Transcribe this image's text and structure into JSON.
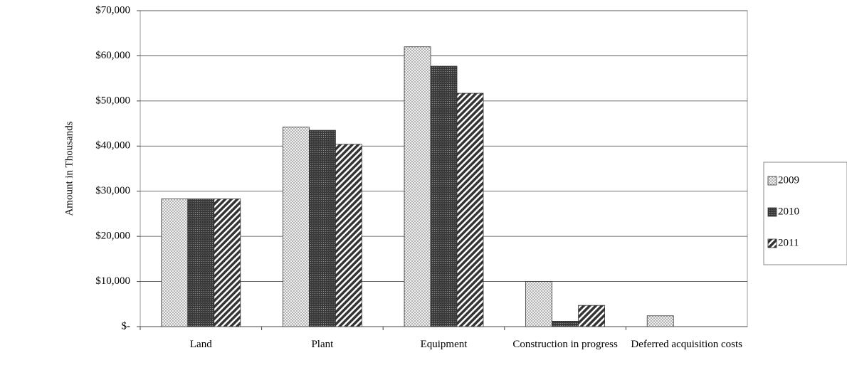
{
  "chart_data": {
    "type": "bar",
    "y_label": "Amount in Thousands",
    "categories": [
      "Land",
      "Plant",
      "Equipment",
      "Construction in progress",
      "Deferred acquisition costs"
    ],
    "series": [
      {
        "name": "2009",
        "color": "#e8e8e8",
        "values": [
          28300,
          44200,
          62000,
          10000,
          2400
        ]
      },
      {
        "name": "2010",
        "color": "#333333",
        "values": [
          28300,
          43500,
          57700,
          1200,
          0
        ]
      },
      {
        "name": "2011",
        "color": "#555555",
        "values": [
          28300,
          40400,
          51700,
          4700,
          0
        ]
      }
    ],
    "ylim": [
      0,
      70000
    ],
    "yticks": [
      {
        "value": 0,
        "label": "$-"
      },
      {
        "value": 10000,
        "label": "$10,000"
      },
      {
        "value": 20000,
        "label": "$20,000"
      },
      {
        "value": 30000,
        "label": "$30,000"
      },
      {
        "value": 40000,
        "label": "$40,000"
      },
      {
        "value": 50000,
        "label": "$50,000"
      },
      {
        "value": 60000,
        "label": "$60,000"
      },
      {
        "value": 70000,
        "label": "$70,000"
      }
    ],
    "grid": true,
    "legend": "right"
  }
}
